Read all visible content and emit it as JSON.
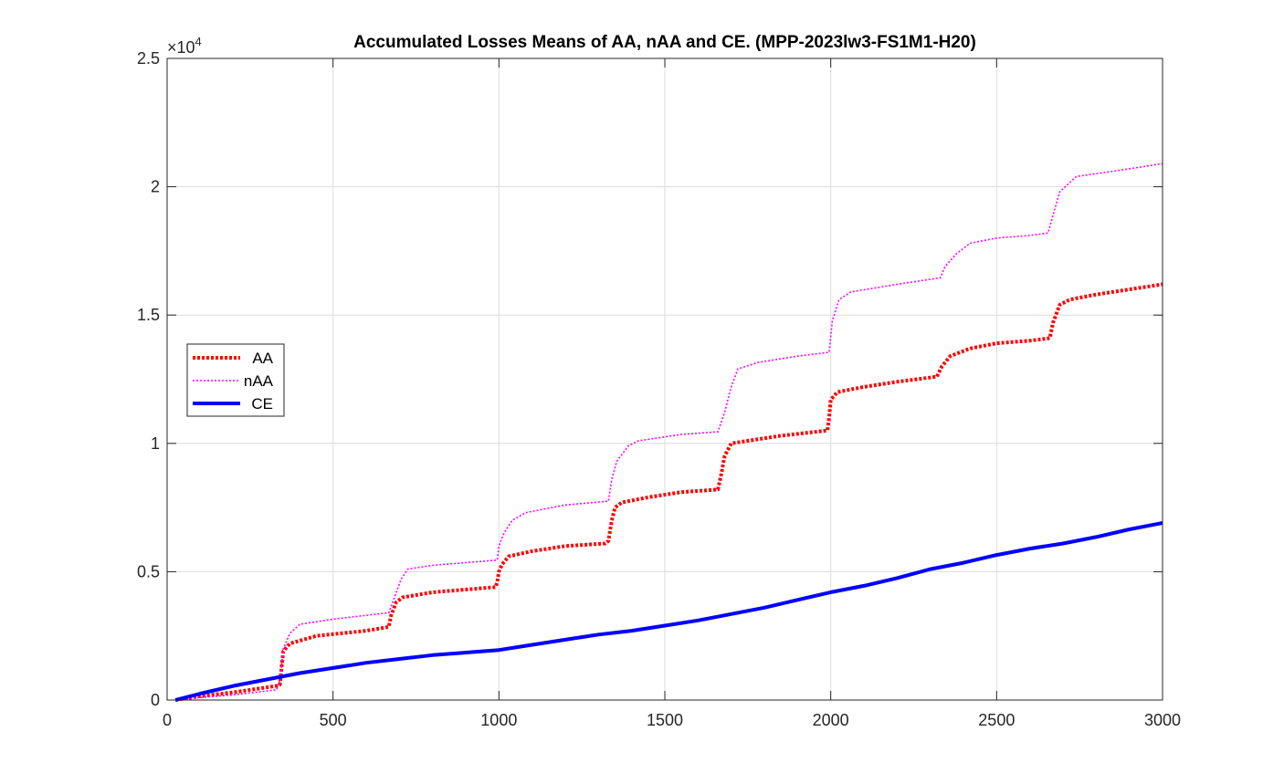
{
  "chart_data": {
    "type": "line",
    "title": "Accumulated Losses Means of AA, nAA and CE. (MPP-2023lw3-FS1M1-H20)",
    "xlabel": "",
    "ylabel": "",
    "xlim": [
      0,
      3000
    ],
    "ylim": [
      0,
      25000
    ],
    "y_exponent_label": "×10",
    "y_exponent_power": "4",
    "xticks": [
      0,
      500,
      1000,
      1500,
      2000,
      2500,
      3000
    ],
    "xtick_labels": [
      "0",
      "500",
      "1000",
      "1500",
      "2000",
      "2500",
      "3000"
    ],
    "yticks": [
      0,
      5000,
      10000,
      15000,
      20000,
      25000
    ],
    "ytick_labels": [
      "0",
      "0.5",
      "1",
      "1.5",
      "2",
      "2.5"
    ],
    "grid": true,
    "legend_position": "middle-left",
    "series": [
      {
        "name": "AA",
        "color": "#ff0000",
        "style": "dotted-thick",
        "points": [
          [
            25,
            0
          ],
          [
            100,
            150
          ],
          [
            200,
            300
          ],
          [
            330,
            550
          ],
          [
            340,
            600
          ],
          [
            345,
            1300
          ],
          [
            350,
            1900
          ],
          [
            370,
            2200
          ],
          [
            450,
            2500
          ],
          [
            600,
            2700
          ],
          [
            668,
            2850
          ],
          [
            675,
            3300
          ],
          [
            690,
            3800
          ],
          [
            710,
            4000
          ],
          [
            800,
            4200
          ],
          [
            990,
            4400
          ],
          [
            995,
            4600
          ],
          [
            1000,
            5000
          ],
          [
            1010,
            5300
          ],
          [
            1030,
            5600
          ],
          [
            1100,
            5800
          ],
          [
            1200,
            6000
          ],
          [
            1320,
            6100
          ],
          [
            1330,
            6200
          ],
          [
            1340,
            7000
          ],
          [
            1350,
            7500
          ],
          [
            1370,
            7700
          ],
          [
            1450,
            7900
          ],
          [
            1550,
            8100
          ],
          [
            1660,
            8200
          ],
          [
            1670,
            8800
          ],
          [
            1680,
            9500
          ],
          [
            1700,
            10000
          ],
          [
            1750,
            10100
          ],
          [
            1850,
            10300
          ],
          [
            1990,
            10500
          ],
          [
            1995,
            11000
          ],
          [
            2000,
            11700
          ],
          [
            2020,
            12000
          ],
          [
            2100,
            12200
          ],
          [
            2200,
            12400
          ],
          [
            2320,
            12600
          ],
          [
            2335,
            13000
          ],
          [
            2360,
            13400
          ],
          [
            2420,
            13700
          ],
          [
            2500,
            13900
          ],
          [
            2600,
            14000
          ],
          [
            2660,
            14100
          ],
          [
            2670,
            14700
          ],
          [
            2690,
            15400
          ],
          [
            2720,
            15600
          ],
          [
            2800,
            15800
          ],
          [
            3000,
            16200
          ]
        ]
      },
      {
        "name": "nAA",
        "color": "#ff00ff",
        "style": "dotted-thin",
        "points": [
          [
            25,
            0
          ],
          [
            100,
            100
          ],
          [
            200,
            200
          ],
          [
            330,
            400
          ],
          [
            340,
            800
          ],
          [
            345,
            1400
          ],
          [
            350,
            2000
          ],
          [
            370,
            2600
          ],
          [
            400,
            2950
          ],
          [
            500,
            3150
          ],
          [
            600,
            3300
          ],
          [
            668,
            3400
          ],
          [
            685,
            4000
          ],
          [
            705,
            4700
          ],
          [
            725,
            5100
          ],
          [
            800,
            5250
          ],
          [
            995,
            5450
          ],
          [
            1000,
            6000
          ],
          [
            1015,
            6500
          ],
          [
            1040,
            7000
          ],
          [
            1080,
            7300
          ],
          [
            1200,
            7600
          ],
          [
            1330,
            7750
          ],
          [
            1340,
            8600
          ],
          [
            1355,
            9300
          ],
          [
            1390,
            9900
          ],
          [
            1420,
            10100
          ],
          [
            1550,
            10350
          ],
          [
            1660,
            10450
          ],
          [
            1680,
            11200
          ],
          [
            1700,
            12200
          ],
          [
            1720,
            12900
          ],
          [
            1780,
            13150
          ],
          [
            1900,
            13400
          ],
          [
            1995,
            13550
          ],
          [
            2005,
            14800
          ],
          [
            2025,
            15600
          ],
          [
            2060,
            15900
          ],
          [
            2200,
            16200
          ],
          [
            2330,
            16450
          ],
          [
            2345,
            16900
          ],
          [
            2380,
            17400
          ],
          [
            2420,
            17800
          ],
          [
            2500,
            18000
          ],
          [
            2600,
            18100
          ],
          [
            2655,
            18200
          ],
          [
            2670,
            18900
          ],
          [
            2690,
            19800
          ],
          [
            2740,
            20400
          ],
          [
            2850,
            20600
          ],
          [
            3000,
            20900
          ]
        ]
      },
      {
        "name": "CE",
        "color": "#0000ff",
        "style": "solid",
        "points": [
          [
            25,
            0
          ],
          [
            100,
            250
          ],
          [
            200,
            550
          ],
          [
            300,
            800
          ],
          [
            400,
            1050
          ],
          [
            500,
            1250
          ],
          [
            600,
            1450
          ],
          [
            700,
            1600
          ],
          [
            800,
            1750
          ],
          [
            900,
            1850
          ],
          [
            1000,
            1950
          ],
          [
            1100,
            2150
          ],
          [
            1200,
            2350
          ],
          [
            1300,
            2550
          ],
          [
            1400,
            2700
          ],
          [
            1500,
            2900
          ],
          [
            1600,
            3100
          ],
          [
            1700,
            3350
          ],
          [
            1800,
            3600
          ],
          [
            1900,
            3900
          ],
          [
            2000,
            4200
          ],
          [
            2100,
            4450
          ],
          [
            2200,
            4750
          ],
          [
            2300,
            5100
          ],
          [
            2400,
            5350
          ],
          [
            2500,
            5650
          ],
          [
            2600,
            5900
          ],
          [
            2700,
            6100
          ],
          [
            2800,
            6350
          ],
          [
            2900,
            6650
          ],
          [
            3000,
            6900
          ]
        ]
      }
    ]
  }
}
